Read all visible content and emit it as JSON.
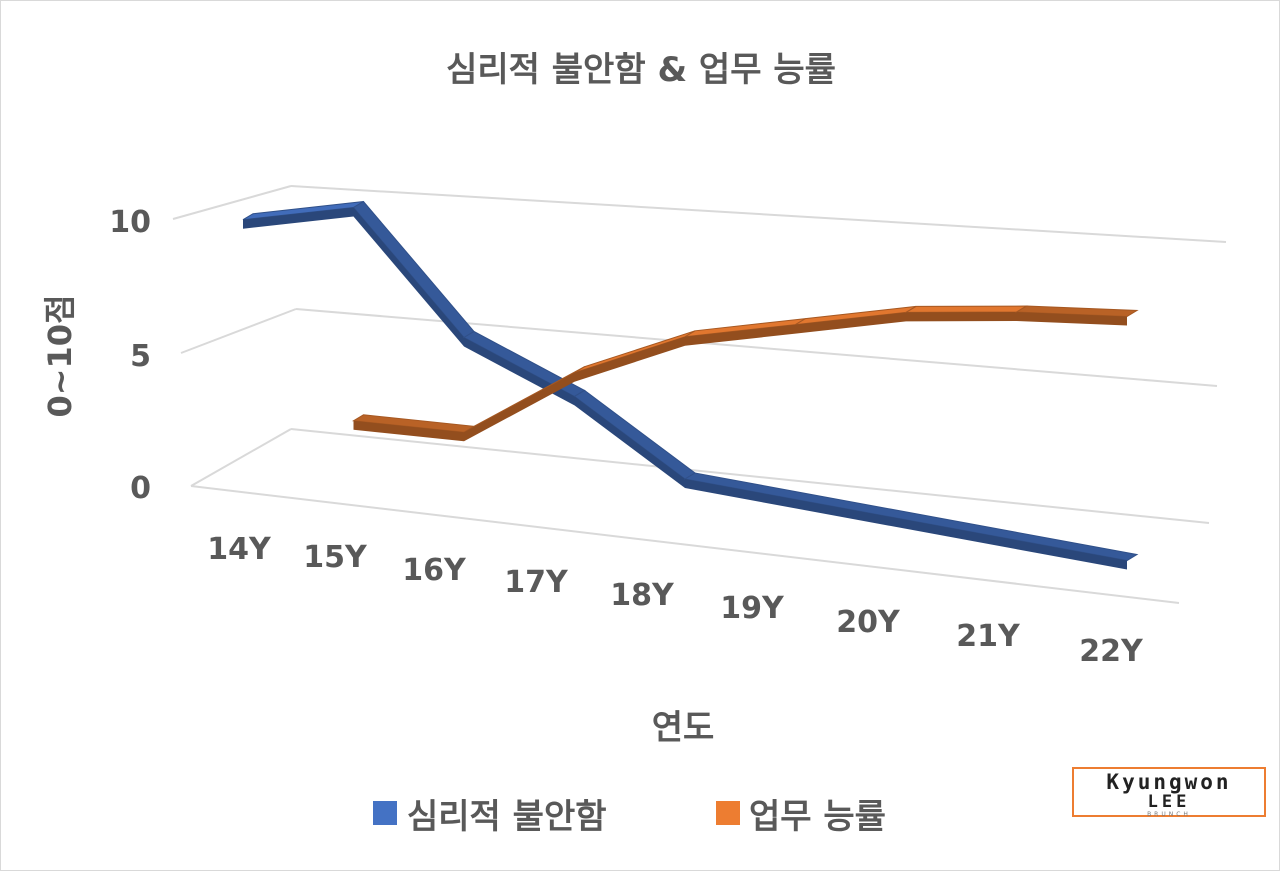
{
  "chart_data": {
    "type": "line",
    "title": "심리적 불안함 & 업무 능률",
    "categories": [
      "14Y",
      "15Y",
      "16Y",
      "17Y",
      "18Y",
      "19Y",
      "20Y",
      "21Y",
      "22Y"
    ],
    "series": [
      {
        "name": "심리적 불안함",
        "color": "#4472c4",
        "values": [
          9,
          10,
          5,
          3,
          0,
          null,
          null,
          null,
          -1.5
        ]
      },
      {
        "name": "업무 능률",
        "color": "#ed7d31",
        "values": [
          null,
          1,
          1,
          4,
          6,
          7,
          8,
          8.5,
          8.8
        ]
      }
    ],
    "xlabel": "연도",
    "ylabel": "0~10점",
    "yticks": [
      "0",
      "5",
      "10"
    ],
    "ylim": [
      0,
      10
    ],
    "grid": true,
    "legend": "bottom"
  },
  "brand": {
    "line1": "Kyungwon",
    "line2": "LEE",
    "line3": "BRUNCH"
  }
}
